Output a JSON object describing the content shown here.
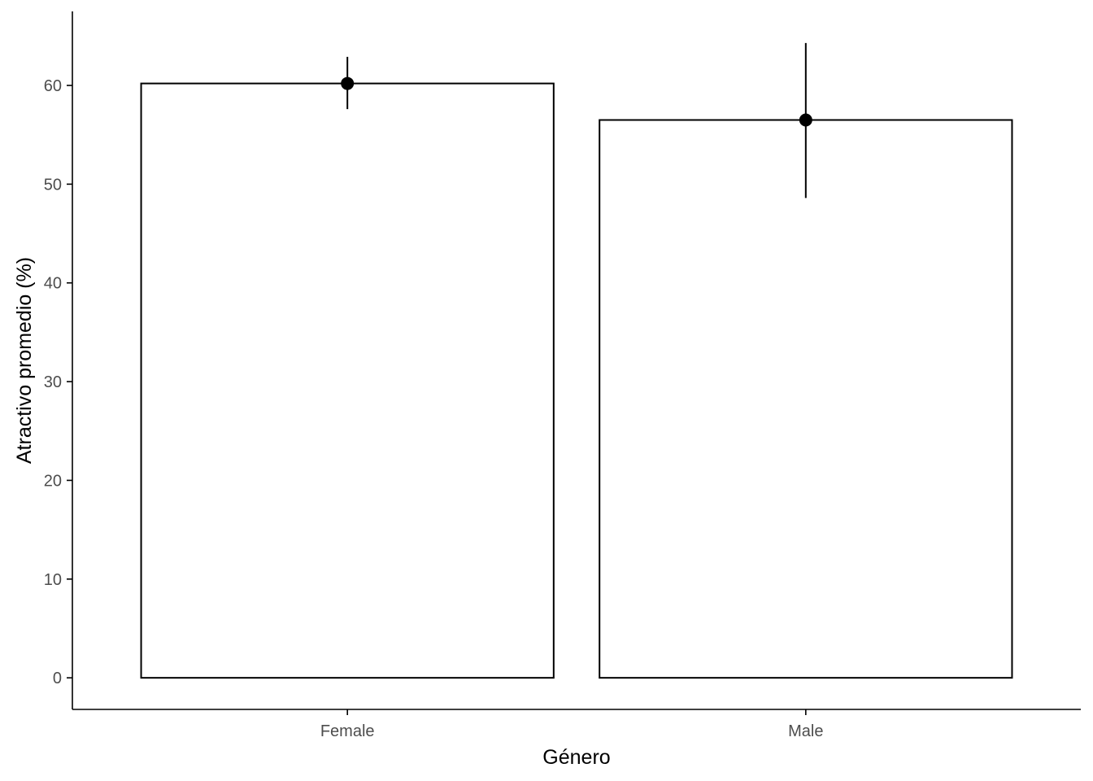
{
  "chart_data": {
    "type": "bar",
    "title": "",
    "xlabel": "Género",
    "ylabel": "Atractivo promedio (%)",
    "categories": [
      "Female",
      "Male"
    ],
    "values": [
      60.2,
      56.5
    ],
    "error_low": [
      57.6,
      48.6
    ],
    "error_high": [
      62.9,
      64.3
    ],
    "ylim": [
      -3.2,
      67.5
    ],
    "yticks": [
      0,
      10,
      20,
      30,
      40,
      50,
      60
    ],
    "ytick_labels": [
      "0",
      "10",
      "20",
      "30",
      "40",
      "50",
      "60"
    ],
    "grid": false,
    "legend": "none",
    "colors": {
      "bar_fill": "#ffffff",
      "bar_stroke": "#000000",
      "point": "#000000",
      "errorbar": "#000000",
      "axis": "#000000",
      "tick_label": "#4d4d4d"
    }
  }
}
